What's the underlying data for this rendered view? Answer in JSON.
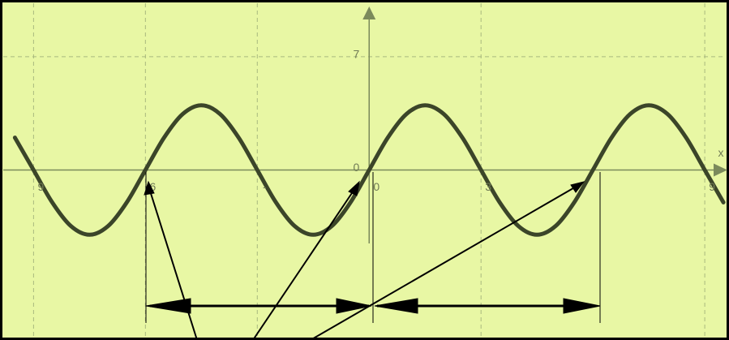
{
  "chart_data": {
    "type": "line",
    "x_label": "x",
    "x": [
      -9.5,
      -9,
      -8.5,
      -8,
      -7.5,
      -7,
      -6.5,
      -6,
      -5.5,
      -5,
      -4.5,
      -4,
      -3.5,
      -3,
      -2.5,
      -2,
      -1.5,
      -1,
      -0.5,
      0,
      0.5,
      1,
      1.5,
      2,
      2.5,
      3,
      3.5,
      4,
      4.5,
      5,
      5.5,
      6,
      6.5,
      7,
      7.5,
      8,
      8.5,
      9,
      9.5
    ],
    "values": [
      2,
      0,
      -2,
      -3.46,
      -4,
      -3.46,
      -2,
      0,
      2,
      3.46,
      4,
      3.46,
      2,
      0,
      -2,
      -3.46,
      -4,
      -3.46,
      -2,
      0,
      2,
      3.46,
      4,
      3.46,
      2,
      0,
      -2,
      -3.46,
      -4,
      -3.46,
      -2,
      0,
      2,
      3.46,
      4,
      3.46,
      2,
      0,
      -2
    ],
    "color": "#3b4529",
    "xlim": [
      -9.9,
      9.65
    ],
    "ylim": [
      -10.5,
      10.5
    ],
    "xticks": [
      {
        "value": -9,
        "label": "9"
      },
      {
        "value": -6,
        "label": "6"
      },
      {
        "value": -3,
        "label": "-"
      },
      0,
      3,
      9
    ],
    "yticks": [
      7,
      0
    ],
    "grid": true
  }
}
